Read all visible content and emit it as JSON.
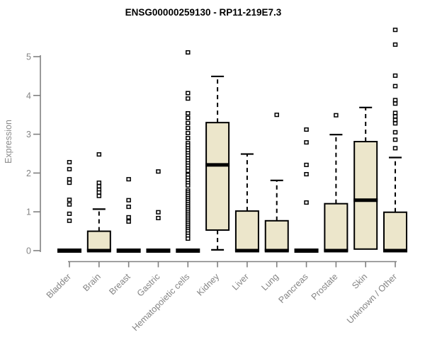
{
  "colors": {
    "background": "#ffffff",
    "box_fill": "#ECE6CB",
    "box_border": "#000000",
    "median": "#000000",
    "whisker": "#000000",
    "outlier_fill": "#ffffff",
    "outlier_border": "#000000",
    "axis": "#808080",
    "tick_text": "#848484",
    "title_text": "#000000"
  },
  "chart_data": {
    "type": "boxplot",
    "title": "ENSG00000259130 - RP11-219E7.3",
    "xlabel": "",
    "ylabel": "Expression",
    "ylim": [
      0,
      5.75
    ],
    "yticks": [
      0,
      1,
      2,
      3,
      4,
      5
    ],
    "grid": false,
    "legend": "none",
    "categories": [
      "Bladder",
      "Brain",
      "Breast",
      "Gastric",
      "Hematopoietic cells",
      "Kidney",
      "Liver",
      "Lung",
      "Pancreas",
      "Prostate",
      "Skin",
      "Unknown / Other"
    ],
    "series": [
      {
        "category": "Bladder",
        "q1": 0,
        "median": 0,
        "q3": 0,
        "whisker_low": 0,
        "whisker_high": 0,
        "outliers": [
          2.28,
          2.1,
          1.84,
          1.75,
          1.31,
          1.19,
          0.95,
          0.77
        ]
      },
      {
        "category": "Brain",
        "q1": 0,
        "median": 0,
        "q3": 0.5,
        "whisker_low": 0,
        "whisker_high": 1.07,
        "outliers": [
          2.48,
          1.75,
          1.66,
          1.57,
          1.5,
          1.41
        ]
      },
      {
        "category": "Breast",
        "q1": 0,
        "median": 0,
        "q3": 0,
        "whisker_low": 0,
        "whisker_high": 0,
        "outliers": [
          1.84,
          1.3,
          1.13,
          0.86,
          0.75
        ]
      },
      {
        "category": "Gastric",
        "q1": 0,
        "median": 0,
        "q3": 0,
        "whisker_low": 0,
        "whisker_high": 0,
        "outliers": [
          2.04,
          0.99,
          0.84
        ]
      },
      {
        "category": "Hematopoietic cells",
        "q1": 0,
        "median": 0,
        "q3": 0,
        "whisker_low": 0,
        "whisker_high": 0,
        "outliers": [
          5.11,
          4.06,
          3.92,
          3.54,
          3.42,
          3.29,
          3.16,
          3.03,
          2.9,
          2.77,
          2.71,
          2.64,
          2.58,
          2.51,
          2.45,
          2.38,
          2.32,
          2.25,
          2.19,
          2.12,
          2.06,
          1.95,
          1.88,
          1.81,
          1.74,
          1.68,
          1.55,
          1.5,
          1.45,
          1.4,
          1.35,
          1.3,
          1.25,
          1.2,
          1.15,
          1.1,
          1.05,
          1.0,
          0.95,
          0.9,
          0.85,
          0.8,
          0.75,
          0.7,
          0.65,
          0.6,
          0.55,
          0.5,
          0.44,
          0.38,
          0.31
        ]
      },
      {
        "category": "Kidney",
        "q1": 0.53,
        "median": 2.21,
        "q3": 3.3,
        "whisker_low": 0.02,
        "whisker_high": 4.49,
        "outliers": []
      },
      {
        "category": "Liver",
        "q1": 0,
        "median": 0,
        "q3": 1.02,
        "whisker_low": 0,
        "whisker_high": 2.49,
        "outliers": []
      },
      {
        "category": "Lung",
        "q1": 0,
        "median": 0,
        "q3": 0.77,
        "whisker_low": 0,
        "whisker_high": 1.81,
        "outliers": [
          3.5
        ]
      },
      {
        "category": "Pancreas",
        "q1": 0,
        "median": 0,
        "q3": 0,
        "whisker_low": 0,
        "whisker_high": 0,
        "outliers": [
          3.12,
          2.79,
          2.21,
          1.97,
          1.24
        ]
      },
      {
        "category": "Prostate",
        "q1": 0,
        "median": 0,
        "q3": 1.21,
        "whisker_low": 0,
        "whisker_high": 2.99,
        "outliers": [
          3.49
        ]
      },
      {
        "category": "Skin",
        "q1": 0.04,
        "median": 1.3,
        "q3": 2.81,
        "whisker_low": 0.04,
        "whisker_high": 3.69,
        "outliers": []
      },
      {
        "category": "Unknown / Other",
        "q1": 0,
        "median": 0,
        "q3": 0.99,
        "whisker_low": 0,
        "whisker_high": 2.4,
        "outliers": [
          5.69,
          5.31,
          4.51,
          4.24,
          3.88,
          3.79,
          3.55,
          3.46,
          3.37,
          3.28,
          3.05,
          2.86,
          2.64
        ]
      }
    ]
  }
}
